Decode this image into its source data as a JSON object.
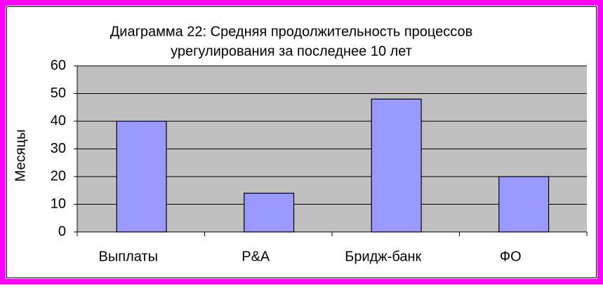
{
  "chart_data": {
    "type": "bar",
    "title": [
      "Диаграмма 22: Средняя продолжительность процессов",
      "урегулирования за последнее 10 лет"
    ],
    "y_label": "Месяцы",
    "categories": [
      "Выплаты",
      "P&A",
      "Бридж-банк",
      "ФО"
    ],
    "values": [
      40,
      14,
      48,
      20
    ],
    "color": "#9999ff",
    "ylim": [
      0,
      60
    ],
    "yticks": [
      0,
      10,
      20,
      30,
      40,
      50,
      60
    ],
    "grid": true
  }
}
